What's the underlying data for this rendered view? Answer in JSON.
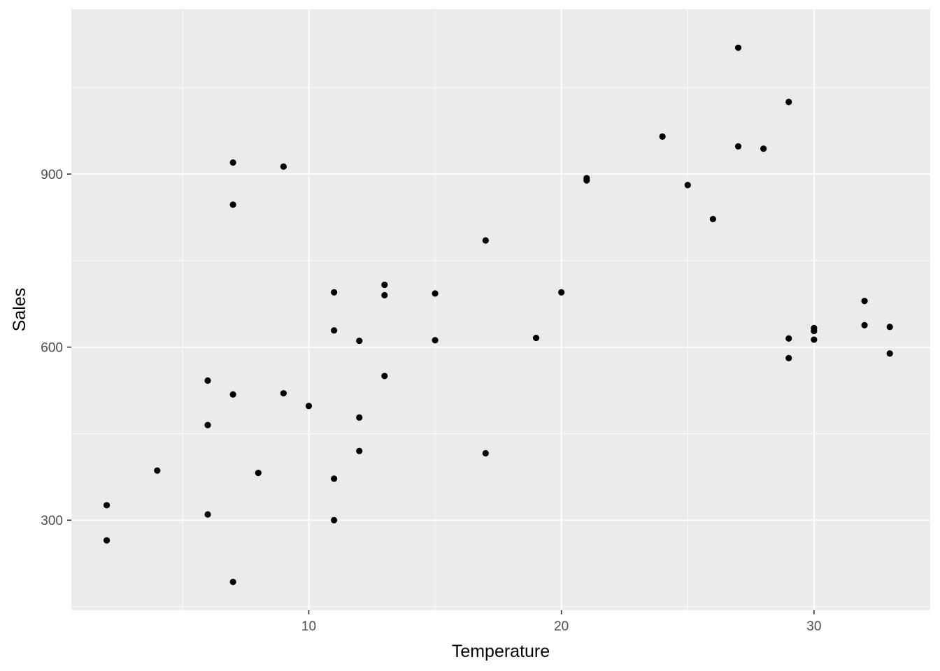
{
  "chart_data": {
    "type": "scatter",
    "title": "",
    "xlabel": "Temperature",
    "ylabel": "Sales",
    "xlim": [
      0.6,
      34.6
    ],
    "ylim": [
      144,
      1186
    ],
    "x_ticks": [
      10,
      20,
      30
    ],
    "x_tick_labels": [
      "10",
      "20",
      "30"
    ],
    "y_ticks": [
      300,
      600,
      900
    ],
    "y_tick_labels": [
      "300",
      "600",
      "900"
    ],
    "grid": true,
    "legend": "none",
    "colors": {
      "panel": "#ebebeb",
      "grid": "#ffffff",
      "point": "#000000",
      "tick": "#333333"
    },
    "points": [
      {
        "x": 2,
        "y": 326
      },
      {
        "x": 2,
        "y": 265
      },
      {
        "x": 4,
        "y": 386
      },
      {
        "x": 6,
        "y": 542
      },
      {
        "x": 6,
        "y": 465
      },
      {
        "x": 6,
        "y": 310
      },
      {
        "x": 7,
        "y": 920
      },
      {
        "x": 7,
        "y": 847
      },
      {
        "x": 7,
        "y": 518
      },
      {
        "x": 7,
        "y": 193
      },
      {
        "x": 8,
        "y": 382
      },
      {
        "x": 9,
        "y": 913
      },
      {
        "x": 9,
        "y": 520
      },
      {
        "x": 10,
        "y": 498
      },
      {
        "x": 11,
        "y": 695
      },
      {
        "x": 11,
        "y": 629
      },
      {
        "x": 11,
        "y": 372
      },
      {
        "x": 11,
        "y": 300
      },
      {
        "x": 12,
        "y": 611
      },
      {
        "x": 12,
        "y": 478
      },
      {
        "x": 12,
        "y": 420
      },
      {
        "x": 13,
        "y": 708
      },
      {
        "x": 13,
        "y": 690
      },
      {
        "x": 13,
        "y": 550
      },
      {
        "x": 15,
        "y": 693
      },
      {
        "x": 15,
        "y": 612
      },
      {
        "x": 17,
        "y": 785
      },
      {
        "x": 17,
        "y": 416
      },
      {
        "x": 19,
        "y": 616
      },
      {
        "x": 20,
        "y": 695
      },
      {
        "x": 21,
        "y": 893
      },
      {
        "x": 21,
        "y": 889
      },
      {
        "x": 24,
        "y": 965
      },
      {
        "x": 25,
        "y": 881
      },
      {
        "x": 26,
        "y": 822
      },
      {
        "x": 27,
        "y": 1119
      },
      {
        "x": 27,
        "y": 948
      },
      {
        "x": 28,
        "y": 944
      },
      {
        "x": 29,
        "y": 1025
      },
      {
        "x": 29,
        "y": 615
      },
      {
        "x": 29,
        "y": 581
      },
      {
        "x": 30,
        "y": 633
      },
      {
        "x": 30,
        "y": 628
      },
      {
        "x": 30,
        "y": 613
      },
      {
        "x": 32,
        "y": 680
      },
      {
        "x": 32,
        "y": 638
      },
      {
        "x": 33,
        "y": 635
      },
      {
        "x": 33,
        "y": 589
      }
    ]
  }
}
